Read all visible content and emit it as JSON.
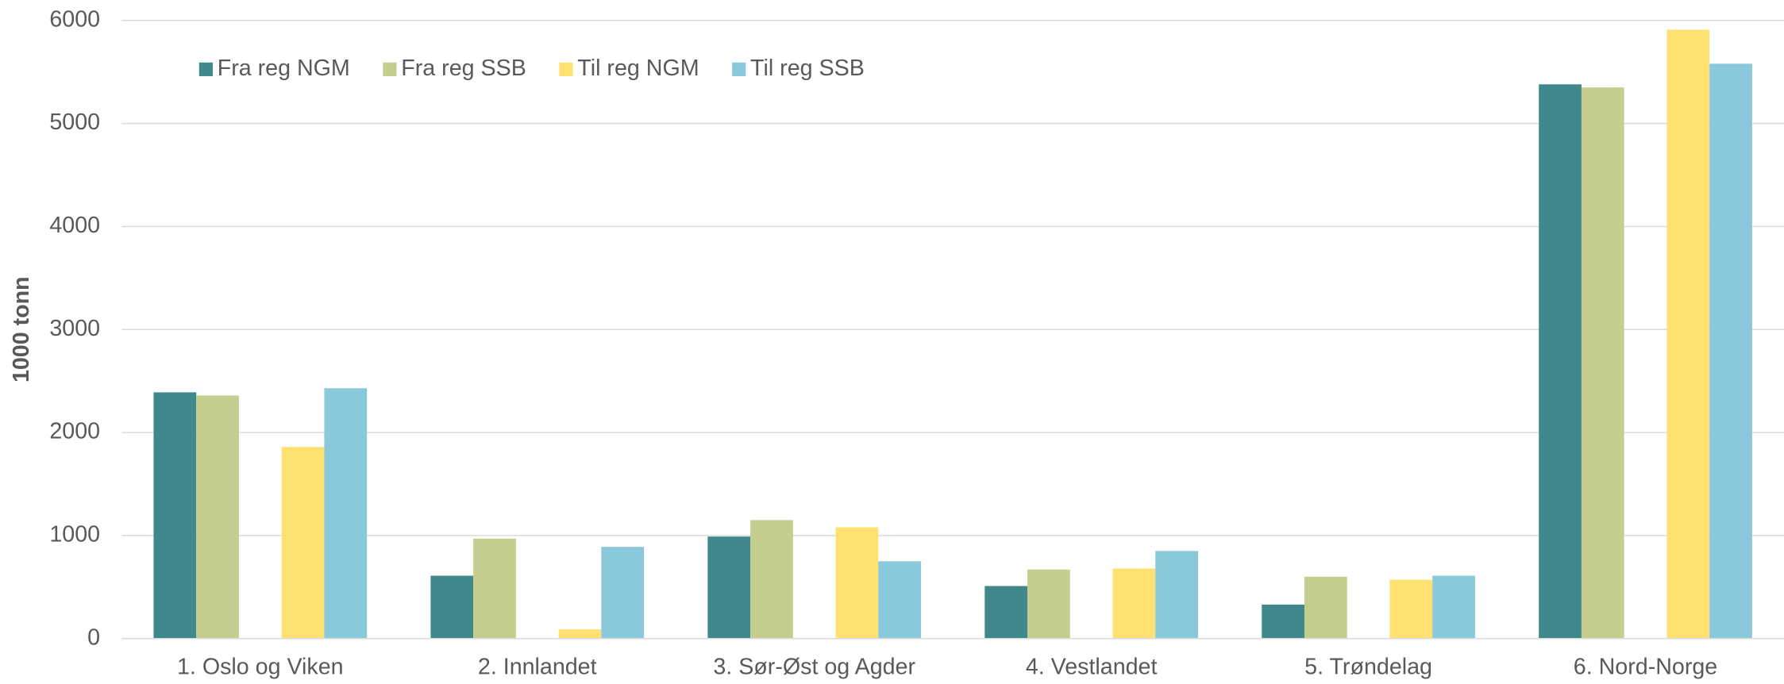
{
  "chart_data": {
    "type": "bar",
    "y_axis_label": "1000 tonn",
    "categories": [
      "1. Oslo og Viken",
      "2. Innlandet",
      "3. Sør-Øst og Agder",
      "4. Vestlandet",
      "5. Trøndelag",
      "6. Nord-Norge"
    ],
    "series": [
      {
        "name": "Fra reg NGM",
        "color": "#3f888c",
        "values": [
          2390,
          610,
          990,
          510,
          330,
          5380
        ]
      },
      {
        "name": "Fra reg SSB",
        "color": "#c5cd8f",
        "values": [
          2360,
          970,
          1150,
          670,
          600,
          5350
        ]
      },
      {
        "name": "Til reg NGM",
        "color": "#ffe171",
        "values": [
          1860,
          90,
          1080,
          680,
          570,
          5910
        ]
      },
      {
        "name": "Til reg SSB",
        "color": "#8ac8dc",
        "values": [
          2430,
          890,
          750,
          850,
          610,
          5580
        ]
      }
    ],
    "ylim": [
      0,
      6000
    ],
    "yticks": [
      0,
      1000,
      2000,
      3000,
      4000,
      5000,
      6000
    ],
    "grid": true,
    "legend": "top-left"
  }
}
